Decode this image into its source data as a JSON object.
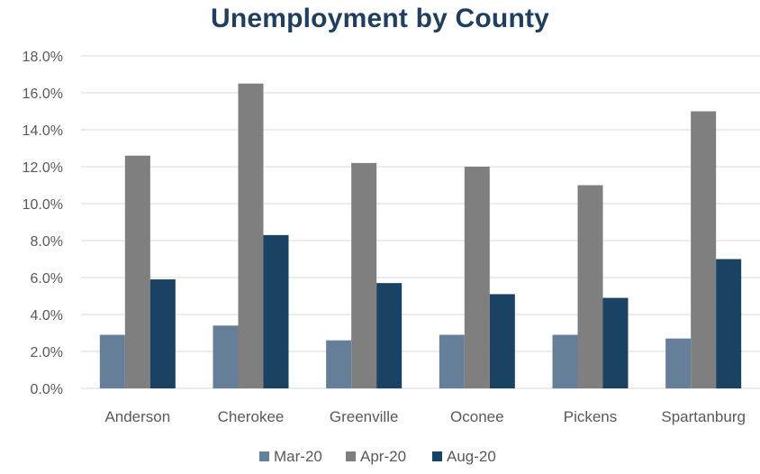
{
  "chart_data": {
    "type": "bar",
    "title": "Unemployment by County",
    "xlabel": "",
    "ylabel": "",
    "categories": [
      "Anderson",
      "Cherokee",
      "Greenville",
      "Oconee",
      "Pickens",
      "Spartanburg"
    ],
    "series": [
      {
        "name": "Mar-20",
        "color": "#667f99",
        "values": [
          2.9,
          3.4,
          2.6,
          2.9,
          2.9,
          2.7
        ]
      },
      {
        "name": "Apr-20",
        "color": "#7f7f7f",
        "values": [
          12.6,
          16.5,
          12.2,
          12.0,
          11.0,
          15.0
        ]
      },
      {
        "name": "Aug-20",
        "color": "#1a4262",
        "values": [
          5.9,
          8.3,
          5.7,
          5.1,
          4.9,
          7.0
        ]
      }
    ],
    "ylim": [
      0,
      18
    ],
    "yticks": [
      "0.0%",
      "2.0%",
      "4.0%",
      "6.0%",
      "8.0%",
      "10.0%",
      "12.0%",
      "14.0%",
      "16.0%",
      "18.0%"
    ],
    "ytick_values": [
      0,
      2,
      4,
      6,
      8,
      10,
      12,
      14,
      16,
      18
    ],
    "grid": true,
    "legend_position": "bottom",
    "gridline_color": "#d9d9d9"
  }
}
